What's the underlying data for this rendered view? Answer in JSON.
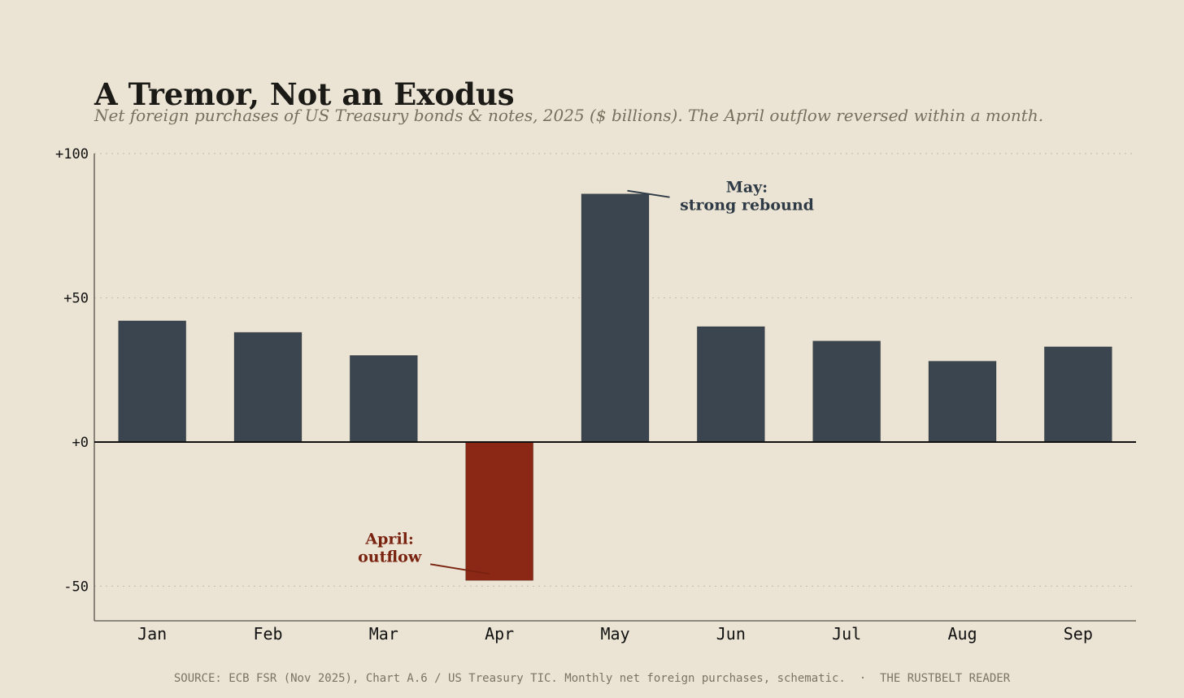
{
  "header": {
    "title": "A Tremor, Not an Exodus",
    "subtitle": "Net foreign purchases of US Treasury bonds & notes, 2025 ($ billions). The April outflow reversed within a month."
  },
  "footer": {
    "text": "SOURCE: ECB FSR (Nov 2025), Chart A.6 / US Treasury TIC. Monthly net foreign purchases, schematic.  ·  THE RUSTBELT READER"
  },
  "chart_data": {
    "type": "bar",
    "categories": [
      "Jan",
      "Feb",
      "Mar",
      "Apr",
      "May",
      "Jun",
      "Jul",
      "Aug",
      "Sep"
    ],
    "values": [
      42,
      38,
      30,
      -48,
      86,
      40,
      35,
      28,
      33
    ],
    "ylim": [
      -62,
      100
    ],
    "yticks": [
      -50,
      0,
      50,
      100
    ],
    "ytick_labels": [
      "-50",
      "+0",
      "+50",
      "+100"
    ],
    "xlabel": "",
    "ylabel": "",
    "grid": "y-dotted",
    "legend": "none",
    "colors": {
      "positive": "#3a4550",
      "negative": "#8b2815",
      "background": "#ebe4d4",
      "grid": "#c9c0ad",
      "axis": "#555047"
    },
    "annotations": [
      {
        "category": "Apr",
        "lines": [
          "April:",
          "outflow"
        ],
        "color": "#7a2210"
      },
      {
        "category": "May",
        "lines": [
          "May:",
          "strong rebound"
        ],
        "color": "#2e3a45"
      }
    ]
  }
}
